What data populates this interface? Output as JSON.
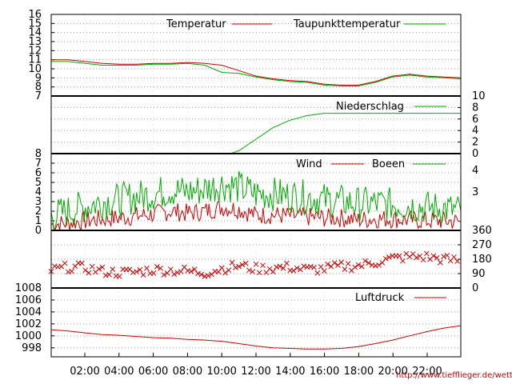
{
  "source_url": "http://www.tiefflieger.de/wetter/",
  "colors": {
    "red": "#cc0000",
    "green": "#00aa00",
    "grid": "#999999"
  },
  "chart_data": [
    {
      "type": "line",
      "legend": [
        "Temperatur",
        "Taupunkttemperatur"
      ],
      "ylim": [
        7,
        16
      ],
      "yticks": [
        7,
        8,
        9,
        10,
        11,
        12,
        13,
        14,
        15,
        16
      ],
      "x_hours": [
        0,
        1,
        2,
        3,
        4,
        5,
        6,
        7,
        8,
        9,
        10,
        11,
        12,
        13,
        14,
        15,
        16,
        17,
        18,
        19,
        20,
        21,
        22,
        23,
        24
      ],
      "series": [
        {
          "name": "Temperatur",
          "color": "#cc0000",
          "values": [
            11.0,
            11.0,
            10.8,
            10.6,
            10.5,
            10.5,
            10.6,
            10.6,
            10.7,
            10.6,
            10.4,
            9.8,
            9.2,
            8.9,
            8.7,
            8.6,
            8.3,
            8.2,
            8.2,
            8.6,
            9.2,
            9.4,
            9.2,
            9.1,
            9.0
          ]
        },
        {
          "name": "Taupunkttemperatur",
          "color": "#00aa00",
          "values": [
            10.8,
            10.8,
            10.6,
            10.4,
            10.4,
            10.4,
            10.5,
            10.5,
            10.6,
            10.4,
            9.6,
            9.5,
            9.1,
            8.8,
            8.6,
            8.5,
            8.2,
            8.1,
            8.1,
            8.5,
            9.1,
            9.3,
            9.1,
            9.0,
            8.9
          ]
        }
      ]
    },
    {
      "type": "line",
      "legend": [
        "Niederschlag"
      ],
      "ylim": [
        0,
        10
      ],
      "yticks": [
        0,
        2,
        4,
        6,
        8,
        10
      ],
      "x_hours": [
        0,
        1,
        2,
        3,
        4,
        5,
        6,
        7,
        8,
        9,
        10,
        10.5,
        11,
        12,
        13,
        14,
        15,
        16,
        17,
        18,
        19,
        20,
        21,
        22,
        23,
        24
      ],
      "series": [
        {
          "name": "Niederschlag",
          "color": "#00aa00",
          "values": [
            0,
            0,
            0,
            0,
            0,
            0,
            0,
            0,
            0,
            0,
            0,
            0,
            0.5,
            2.5,
            4.5,
            5.8,
            6.6,
            7.0,
            7.0,
            7.0,
            7.0,
            7.0,
            7.0,
            7.0,
            7.0,
            7.0
          ]
        }
      ]
    },
    {
      "type": "line",
      "legend": [
        "Wind",
        "Boeen"
      ],
      "ylim": [
        0,
        8
      ],
      "yticks": [
        0,
        1,
        2,
        3,
        4,
        5,
        6,
        7,
        8
      ],
      "yticks_right": [
        3,
        4
      ],
      "x_hours": [
        0,
        1,
        2,
        3,
        4,
        5,
        6,
        7,
        8,
        9,
        10,
        11,
        12,
        13,
        14,
        15,
        16,
        17,
        18,
        19,
        20,
        21,
        22,
        23,
        24
      ],
      "series": [
        {
          "name": "Wind",
          "color": "#cc0000",
          "values": [
            0.6,
            0.8,
            1.0,
            1.2,
            1.3,
            1.5,
            1.7,
            2.0,
            1.8,
            2.0,
            2.4,
            2.2,
            1.6,
            1.6,
            1.5,
            1.4,
            1.3,
            1.3,
            1.1,
            1.2,
            1.2,
            1.1,
            1.0,
            1.0,
            0.9
          ]
        },
        {
          "name": "Boeen",
          "color": "#00aa00",
          "values": [
            1.5,
            2.0,
            2.5,
            3.0,
            3.2,
            3.5,
            3.8,
            4.2,
            4.0,
            4.3,
            4.8,
            4.5,
            3.8,
            3.8,
            3.6,
            3.5,
            3.2,
            3.0,
            2.8,
            2.8,
            2.7,
            2.6,
            2.4,
            2.3,
            2.0
          ]
        }
      ]
    },
    {
      "type": "scatter",
      "legend": [],
      "ylim": [
        0,
        360
      ],
      "yticks": [
        0,
        90,
        180,
        270,
        360
      ],
      "x_hours": [
        0,
        1,
        2,
        3,
        4,
        5,
        6,
        7,
        8,
        9,
        10,
        11,
        12,
        13,
        14,
        15,
        16,
        17,
        18,
        19,
        20,
        21,
        22,
        23,
        24
      ],
      "series": [
        {
          "name": "",
          "color": "#cc0000",
          "values": [
            110,
            130,
            125,
            105,
            95,
            100,
            115,
            110,
            105,
            95,
            120,
            140,
            120,
            125,
            130,
            115,
            120,
            135,
            140,
            160,
            185,
            195,
            195,
            180,
            170
          ]
        }
      ]
    },
    {
      "type": "line",
      "legend": [
        "Luftdruck"
      ],
      "ylim": [
        996.5,
        1008
      ],
      "yticks": [
        998,
        1000,
        1002,
        1004,
        1006,
        1008
      ],
      "x_hours": [
        0,
        1,
        2,
        3,
        4,
        5,
        6,
        7,
        8,
        9,
        10,
        11,
        12,
        13,
        14,
        15,
        16,
        17,
        18,
        19,
        20,
        21,
        22,
        23,
        24
      ],
      "series": [
        {
          "name": "Luftdruck",
          "color": "#cc0000",
          "values": [
            1001.0,
            1000.8,
            1000.5,
            1000.2,
            1000.1,
            999.9,
            999.7,
            999.6,
            999.4,
            999.3,
            999.1,
            998.7,
            998.3,
            998.0,
            997.9,
            997.8,
            997.8,
            997.9,
            998.2,
            998.7,
            999.3,
            1000.0,
            1000.7,
            1001.3,
            1001.7
          ]
        }
      ]
    }
  ],
  "x_tick_labels": [
    "02:00",
    "04:00",
    "06:00",
    "08:00",
    "10:00",
    "12:00",
    "14:00",
    "16:00",
    "18:00",
    "20:00",
    "22:00"
  ]
}
